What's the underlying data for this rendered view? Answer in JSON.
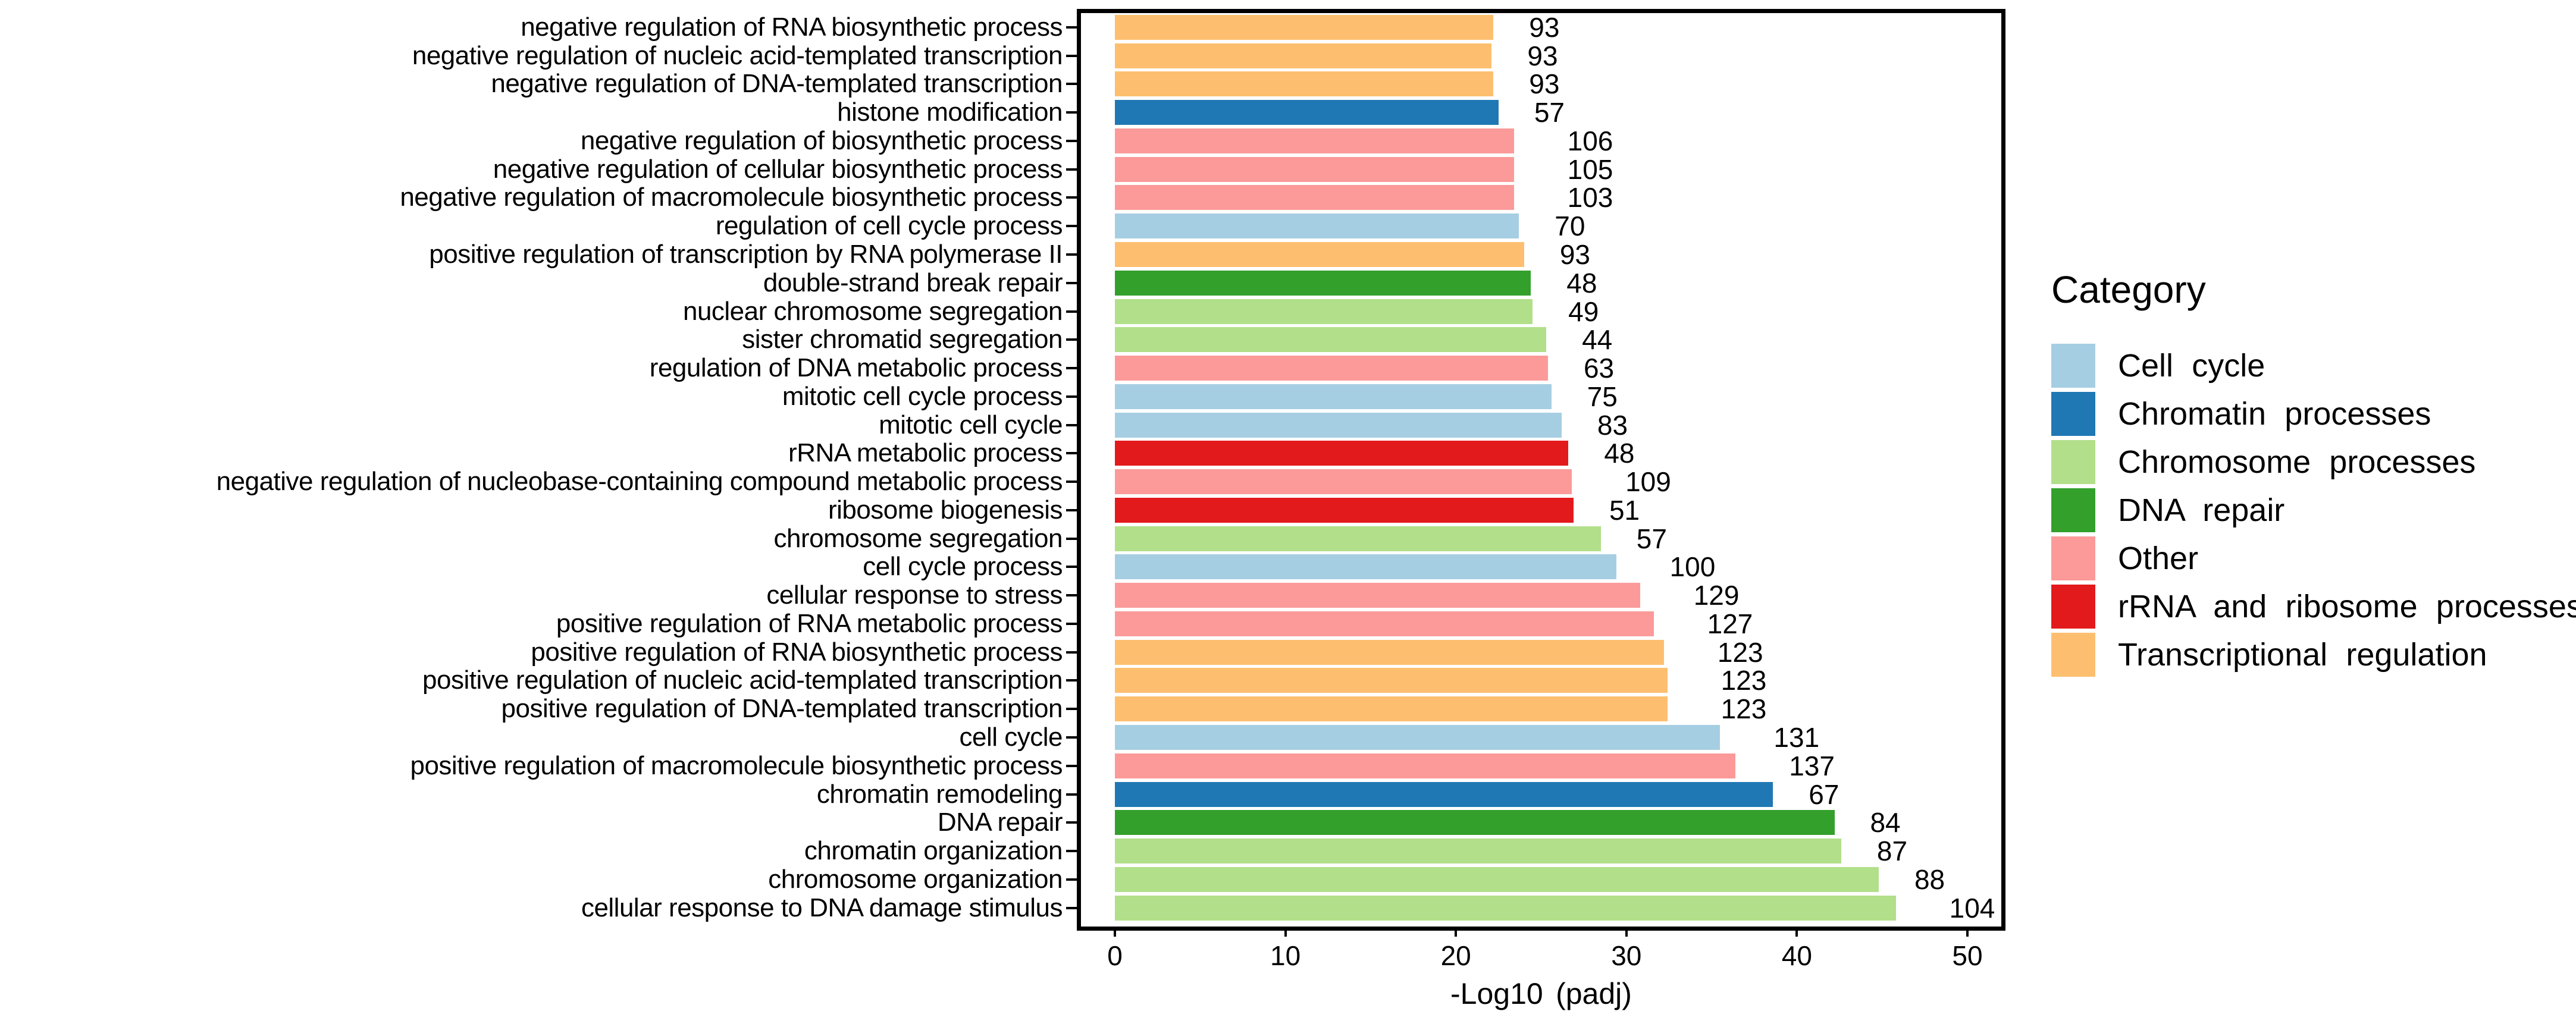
{
  "chart_data": {
    "type": "bar",
    "orientation": "horizontal",
    "title": "",
    "xlabel": "-Log10 (padj)",
    "ylabel": "",
    "xlim": [
      0,
      52
    ],
    "x_ticks": [
      0,
      10,
      20,
      30,
      40,
      50
    ],
    "grid": false,
    "legend_position": "right",
    "legend_title": "Category",
    "bar_value_annotation": "gene count shown at end of each bar",
    "categories": [
      {
        "name": "Cell cycle",
        "color": "#A6CEE3"
      },
      {
        "name": "Chromatin processes",
        "color": "#1F78B4"
      },
      {
        "name": "Chromosome processes",
        "color": "#B2DF8A"
      },
      {
        "name": "DNA repair",
        "color": "#33A02C"
      },
      {
        "name": "Other",
        "color": "#FB9A99"
      },
      {
        "name": "rRNA and ribosome processes",
        "color": "#E31A1C"
      },
      {
        "name": "Transcriptional regulation",
        "color": "#FDBF6F"
      }
    ],
    "rows": [
      {
        "label": "negative regulation of RNA biosynthetic process",
        "category": "Transcriptional regulation",
        "value": 22.2,
        "count": 93
      },
      {
        "label": "negative regulation of nucleic acid-templated transcription",
        "category": "Transcriptional regulation",
        "value": 22.1,
        "count": 93
      },
      {
        "label": "negative regulation of DNA-templated transcription",
        "category": "Transcriptional regulation",
        "value": 22.2,
        "count": 93
      },
      {
        "label": "histone modification",
        "category": "Chromatin processes",
        "value": 22.5,
        "count": 57
      },
      {
        "label": "negative regulation of biosynthetic process",
        "category": "Other",
        "value": 23.4,
        "count": 106
      },
      {
        "label": "negative regulation of cellular biosynthetic process",
        "category": "Other",
        "value": 23.4,
        "count": 105
      },
      {
        "label": "negative regulation of macromolecule biosynthetic process",
        "category": "Other",
        "value": 23.4,
        "count": 103
      },
      {
        "label": "regulation of cell cycle process",
        "category": "Cell cycle",
        "value": 23.7,
        "count": 70
      },
      {
        "label": "positive regulation of transcription by RNA polymerase II",
        "category": "Transcriptional regulation",
        "value": 24.0,
        "count": 93
      },
      {
        "label": "double-strand break repair",
        "category": "DNA repair",
        "value": 24.4,
        "count": 48
      },
      {
        "label": "nuclear chromosome segregation",
        "category": "Chromosome processes",
        "value": 24.5,
        "count": 49
      },
      {
        "label": "sister chromatid segregation",
        "category": "Chromosome processes",
        "value": 25.3,
        "count": 44
      },
      {
        "label": "regulation of DNA metabolic process",
        "category": "Other",
        "value": 25.4,
        "count": 63
      },
      {
        "label": "mitotic cell cycle process",
        "category": "Cell cycle",
        "value": 25.6,
        "count": 75
      },
      {
        "label": "mitotic cell cycle",
        "category": "Cell cycle",
        "value": 26.2,
        "count": 83
      },
      {
        "label": "rRNA metabolic process",
        "category": "rRNA and ribosome processes",
        "value": 26.6,
        "count": 48
      },
      {
        "label": "negative regulation of nucleobase-containing compound metabolic process",
        "category": "Other",
        "value": 26.8,
        "count": 109
      },
      {
        "label": "ribosome biogenesis",
        "category": "rRNA and ribosome processes",
        "value": 26.9,
        "count": 51
      },
      {
        "label": "chromosome segregation",
        "category": "Chromosome processes",
        "value": 28.5,
        "count": 57
      },
      {
        "label": "cell cycle process",
        "category": "Cell cycle",
        "value": 29.4,
        "count": 100
      },
      {
        "label": "cellular response to stress",
        "category": "Other",
        "value": 30.8,
        "count": 129
      },
      {
        "label": "positive regulation of RNA metabolic process",
        "category": "Other",
        "value": 31.6,
        "count": 127
      },
      {
        "label": "positive regulation of RNA biosynthetic process",
        "category": "Transcriptional regulation",
        "value": 32.2,
        "count": 123
      },
      {
        "label": "positive regulation of nucleic acid-templated transcription",
        "category": "Transcriptional regulation",
        "value": 32.4,
        "count": 123
      },
      {
        "label": "positive regulation of DNA-templated transcription",
        "category": "Transcriptional regulation",
        "value": 32.4,
        "count": 123
      },
      {
        "label": "cell cycle",
        "category": "Cell cycle",
        "value": 35.5,
        "count": 131
      },
      {
        "label": "positive regulation of macromolecule biosynthetic process",
        "category": "Other",
        "value": 36.4,
        "count": 137
      },
      {
        "label": "chromatin remodeling",
        "category": "Chromatin processes",
        "value": 38.6,
        "count": 67
      },
      {
        "label": "DNA repair",
        "category": "DNA repair",
        "value": 42.2,
        "count": 84
      },
      {
        "label": "chromatin organization",
        "category": "Chromosome processes",
        "value": 42.6,
        "count": 87
      },
      {
        "label": "chromosome organization",
        "category": "Chromosome processes",
        "value": 44.8,
        "count": 88
      },
      {
        "label": "cellular response to DNA damage stimulus",
        "category": "Chromosome processes",
        "value": 45.8,
        "count": 104
      }
    ]
  }
}
